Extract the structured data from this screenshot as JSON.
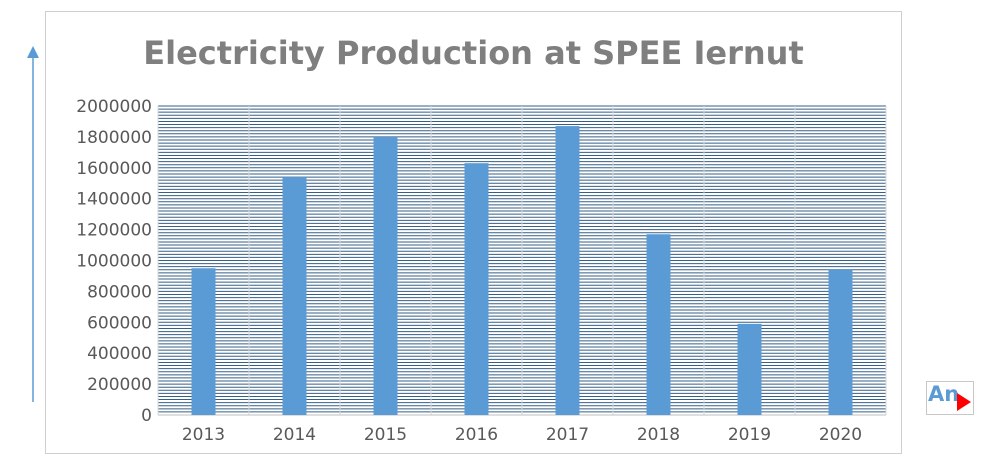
{
  "chart_data": {
    "type": "bar",
    "title": "Electricity Production at SPEE Iernut",
    "xlabel": "",
    "ylabel": "",
    "categories": [
      "2013",
      "2014",
      "2015",
      "2016",
      "2017",
      "2018",
      "2019",
      "2020"
    ],
    "values": [
      950000,
      1540000,
      1800000,
      1630000,
      1870000,
      1170000,
      590000,
      940000
    ],
    "ylim": [
      0,
      2000000
    ],
    "yticks": [
      "0",
      "200000",
      "400000",
      "600000",
      "800000",
      "1000000",
      "1200000",
      "1400000",
      "1600000",
      "1800000",
      "2000000"
    ],
    "grid": true,
    "legend": "none",
    "colors": {
      "bar": "#5b9bd5",
      "grid": "#1f4e79",
      "title": "#7f7f7f",
      "axis_text": "#595959"
    }
  },
  "corner_label": {
    "text": "An",
    "icon": "play-icon",
    "icon_color": "#ff0000"
  }
}
